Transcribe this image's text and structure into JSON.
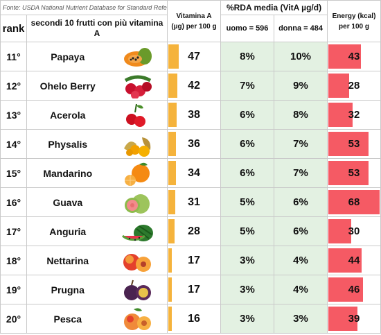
{
  "header": {
    "source": "Fonte: USDA National Nutrient Database for Standard Reference",
    "rank_label": "rank",
    "subtitle": "secondi 10 frutti con più vitamina A",
    "vitamin_label_line1": "Vitamina A",
    "vitamin_label_line2": "(µg) per 100 g",
    "rda_label": "%RDA media (VitA µg/d)",
    "male_label": "uomo = 596",
    "female_label": "donna = 484",
    "energy_label_line1": "Energy (kcal)",
    "energy_label_line2": "per 100 g"
  },
  "scales": {
    "vitamin_max": 240,
    "energy_max": 70
  },
  "colors": {
    "vitamin_bar": "#f5b33c",
    "energy_bar": "#f55a64",
    "rda_bg": "#e3f1e2"
  },
  "rows": [
    {
      "rank": "11°",
      "name": "Papaya",
      "vitamin": 47,
      "male": "8%",
      "female": "10%",
      "energy": 43,
      "icon": "papaya-icon"
    },
    {
      "rank": "12°",
      "name": "Ohelo Berry",
      "vitamin": 42,
      "male": "7%",
      "female": "9%",
      "energy": 28,
      "icon": "ohelo-berry-icon"
    },
    {
      "rank": "13°",
      "name": "Acerola",
      "vitamin": 38,
      "male": "6%",
      "female": "8%",
      "energy": 32,
      "icon": "acerola-icon"
    },
    {
      "rank": "14°",
      "name": "Physalis",
      "vitamin": 36,
      "male": "6%",
      "female": "7%",
      "energy": 53,
      "icon": "physalis-icon"
    },
    {
      "rank": "15°",
      "name": "Mandarino",
      "vitamin": 34,
      "male": "6%",
      "female": "7%",
      "energy": 53,
      "icon": "mandarin-icon"
    },
    {
      "rank": "16°",
      "name": "Guava",
      "vitamin": 31,
      "male": "5%",
      "female": "6%",
      "energy": 68,
      "icon": "guava-icon"
    },
    {
      "rank": "17°",
      "name": "Anguria",
      "vitamin": 28,
      "male": "5%",
      "female": "6%",
      "energy": 30,
      "icon": "watermelon-icon"
    },
    {
      "rank": "18°",
      "name": "Nettarina",
      "vitamin": 17,
      "male": "3%",
      "female": "4%",
      "energy": 44,
      "icon": "nectarine-icon"
    },
    {
      "rank": "19°",
      "name": "Prugna",
      "vitamin": 17,
      "male": "3%",
      "female": "4%",
      "energy": 46,
      "icon": "plum-icon"
    },
    {
      "rank": "20°",
      "name": "Pesca",
      "vitamin": 16,
      "male": "3%",
      "female": "3%",
      "energy": 39,
      "icon": "peach-icon"
    }
  ]
}
